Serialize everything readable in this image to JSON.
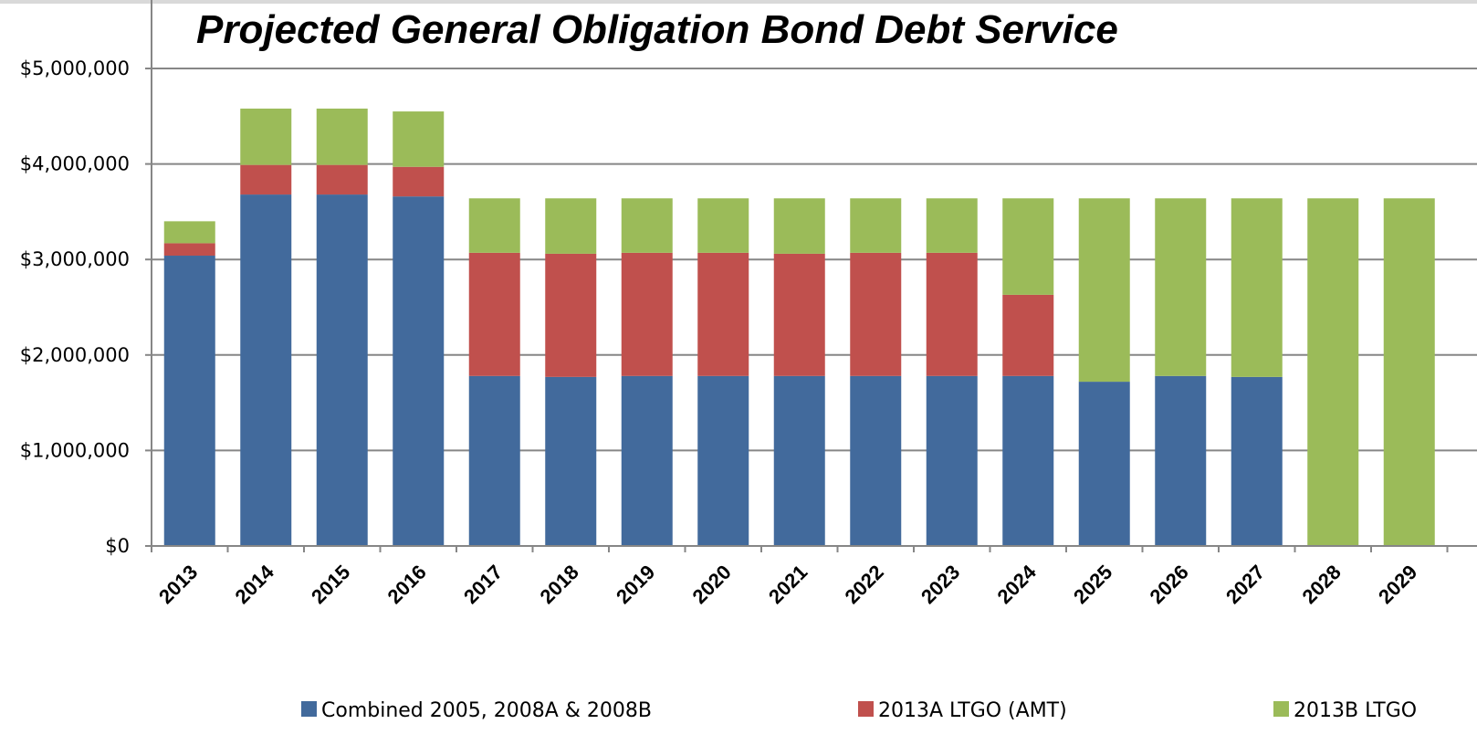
{
  "chart_data": {
    "type": "bar",
    "stacked": true,
    "title": "Projected General Obligation Bond Debt Service",
    "xlabel": "",
    "ylabel": "",
    "ylim": [
      0,
      5000000
    ],
    "yticks": [
      0,
      1000000,
      2000000,
      3000000,
      4000000,
      5000000
    ],
    "ytick_labels": [
      "$0",
      "$1,000,000",
      "$2,000,000",
      "$3,000,000",
      "$4,000,000",
      "$5,000,000"
    ],
    "grid": true,
    "legend_position": "bottom",
    "categories": [
      "2013",
      "2014",
      "2015",
      "2016",
      "2017",
      "2018",
      "2019",
      "2020",
      "2021",
      "2022",
      "2023",
      "2024",
      "2025",
      "2026",
      "2027",
      "2028",
      "2029"
    ],
    "series": [
      {
        "name": "Combined 2005, 2008A & 2008B",
        "color": "#426a9c",
        "values": [
          3040000,
          3680000,
          3680000,
          3660000,
          1780000,
          1770000,
          1780000,
          1780000,
          1780000,
          1780000,
          1780000,
          1780000,
          1720000,
          1780000,
          1770000,
          0,
          0
        ]
      },
      {
        "name": "2013A LTGO (AMT)",
        "color": "#c0504d",
        "values": [
          130000,
          310000,
          310000,
          310000,
          1290000,
          1290000,
          1290000,
          1290000,
          1280000,
          1290000,
          1290000,
          850000,
          0,
          0,
          0,
          0,
          0
        ]
      },
      {
        "name": "2013B LTGO",
        "color": "#9bbb59",
        "values": [
          230000,
          590000,
          590000,
          580000,
          570000,
          580000,
          570000,
          570000,
          580000,
          570000,
          570000,
          1010000,
          1920000,
          1860000,
          1870000,
          3640000,
          3640000
        ]
      }
    ]
  }
}
